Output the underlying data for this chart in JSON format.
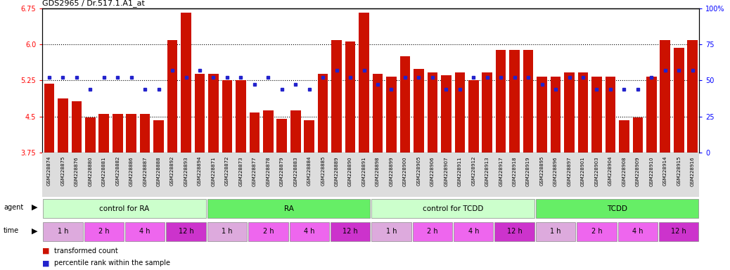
{
  "title": "GDS2965 / Dr.517.1.A1_at",
  "samples": [
    "GSM228874",
    "GSM228875",
    "GSM228876",
    "GSM228880",
    "GSM228881",
    "GSM228882",
    "GSM228886",
    "GSM228887",
    "GSM228888",
    "GSM228892",
    "GSM228893",
    "GSM228894",
    "GSM228871",
    "GSM228872",
    "GSM228873",
    "GSM228877",
    "GSM228878",
    "GSM228879",
    "GSM228883",
    "GSM228884",
    "GSM228885",
    "GSM228889",
    "GSM228890",
    "GSM228891",
    "GSM228898",
    "GSM228899",
    "GSM228900",
    "GSM228905",
    "GSM228906",
    "GSM228907",
    "GSM228911",
    "GSM228912",
    "GSM228913",
    "GSM228917",
    "GSM228918",
    "GSM228919",
    "GSM228895",
    "GSM228896",
    "GSM228897",
    "GSM228901",
    "GSM228903",
    "GSM228904",
    "GSM228908",
    "GSM228909",
    "GSM228910",
    "GSM228914",
    "GSM228915",
    "GSM228916"
  ],
  "red_values": [
    5.18,
    4.88,
    4.82,
    4.48,
    4.55,
    4.55,
    4.55,
    4.55,
    4.42,
    6.08,
    6.65,
    5.38,
    5.38,
    5.25,
    5.25,
    4.58,
    4.62,
    4.45,
    4.62,
    4.42,
    5.38,
    6.08,
    6.05,
    6.65,
    5.38,
    5.32,
    5.75,
    5.48,
    5.42,
    5.35,
    5.42,
    5.25,
    5.42,
    5.88,
    5.88,
    5.88,
    5.32,
    5.32,
    5.42,
    5.42,
    5.32,
    5.32,
    4.42,
    4.48,
    5.32,
    6.08,
    5.92,
    6.08
  ],
  "blue_values": [
    52,
    52,
    52,
    44,
    52,
    52,
    52,
    44,
    44,
    57,
    52,
    57,
    52,
    52,
    52,
    47,
    52,
    44,
    47,
    44,
    52,
    57,
    52,
    57,
    47,
    44,
    52,
    52,
    52,
    44,
    44,
    52,
    52,
    52,
    52,
    52,
    47,
    44,
    52,
    52,
    44,
    44,
    44,
    44,
    52,
    57,
    57,
    57
  ],
  "ylim_left": [
    3.75,
    6.75
  ],
  "ylim_right": [
    0,
    100
  ],
  "yticks_left": [
    3.75,
    4.5,
    5.25,
    6.0,
    6.75
  ],
  "yticks_right": [
    0,
    25,
    50,
    75,
    100
  ],
  "hlines": [
    4.5,
    5.25,
    6.0
  ],
  "bar_color": "#CC1100",
  "blue_color": "#2222CC",
  "agent_groups": [
    {
      "label": "control for RA",
      "start": 0,
      "end": 12,
      "color": "#CCFFCC"
    },
    {
      "label": "RA",
      "start": 12,
      "end": 24,
      "color": "#66EE66"
    },
    {
      "label": "control for TCDD",
      "start": 24,
      "end": 36,
      "color": "#CCFFCC"
    },
    {
      "label": "TCDD",
      "start": 36,
      "end": 48,
      "color": "#66EE66"
    }
  ],
  "time_segments": [
    {
      "label": "1 h",
      "color": "#DDAADD",
      "start": 0,
      "end": 3
    },
    {
      "label": "2 h",
      "color": "#EE66EE",
      "start": 3,
      "end": 6
    },
    {
      "label": "4 h",
      "color": "#EE66EE",
      "start": 6,
      "end": 9
    },
    {
      "label": "12 h",
      "color": "#CC33CC",
      "start": 9,
      "end": 12
    },
    {
      "label": "1 h",
      "color": "#DDAADD",
      "start": 12,
      "end": 15
    },
    {
      "label": "2 h",
      "color": "#EE66EE",
      "start": 15,
      "end": 18
    },
    {
      "label": "4 h",
      "color": "#EE66EE",
      "start": 18,
      "end": 21
    },
    {
      "label": "12 h",
      "color": "#CC33CC",
      "start": 21,
      "end": 24
    },
    {
      "label": "1 h",
      "color": "#DDAADD",
      "start": 24,
      "end": 27
    },
    {
      "label": "2 h",
      "color": "#EE66EE",
      "start": 27,
      "end": 30
    },
    {
      "label": "4 h",
      "color": "#EE66EE",
      "start": 30,
      "end": 33
    },
    {
      "label": "12 h",
      "color": "#CC33CC",
      "start": 33,
      "end": 36
    },
    {
      "label": "1 h",
      "color": "#DDAADD",
      "start": 36,
      "end": 39
    },
    {
      "label": "2 h",
      "color": "#EE66EE",
      "start": 39,
      "end": 42
    },
    {
      "label": "4 h",
      "color": "#EE66EE",
      "start": 42,
      "end": 45
    },
    {
      "label": "12 h",
      "color": "#CC33CC",
      "start": 45,
      "end": 48
    }
  ],
  "legend_red": "transformed count",
  "legend_blue": "percentile rank within the sample",
  "bar_width": 0.75,
  "fig_width": 10.38,
  "fig_height": 3.84,
  "bg_color": "#FFFFFF"
}
